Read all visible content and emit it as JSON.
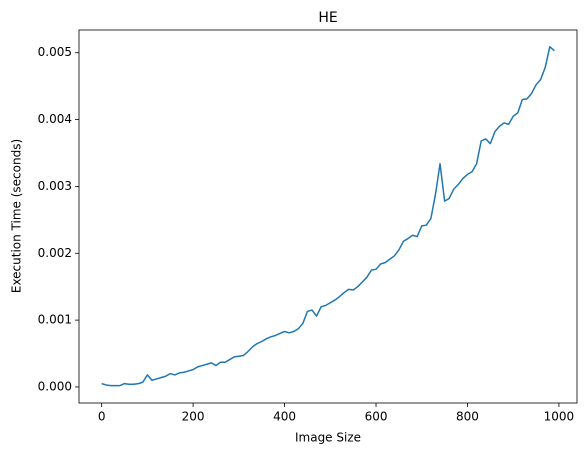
{
  "chart_data": {
    "type": "line",
    "title": "HE",
    "xlabel": "Image Size",
    "ylabel": "Execution Time (seconds)",
    "x": [
      0,
      10,
      20,
      30,
      40,
      50,
      60,
      70,
      80,
      90,
      100,
      110,
      120,
      130,
      140,
      150,
      160,
      170,
      180,
      190,
      200,
      210,
      220,
      230,
      240,
      250,
      260,
      270,
      280,
      290,
      300,
      310,
      320,
      330,
      340,
      350,
      360,
      370,
      380,
      390,
      400,
      410,
      420,
      430,
      440,
      450,
      460,
      470,
      480,
      490,
      500,
      510,
      520,
      530,
      540,
      550,
      560,
      570,
      580,
      590,
      600,
      610,
      620,
      630,
      640,
      650,
      660,
      670,
      680,
      690,
      700,
      710,
      720,
      730,
      740,
      750,
      760,
      770,
      780,
      790,
      800,
      810,
      820,
      830,
      840,
      850,
      860,
      870,
      880,
      890,
      900,
      910,
      920,
      930,
      940,
      950,
      960,
      970,
      980,
      990
    ],
    "series": [
      {
        "name": "HE",
        "color": "#1f77b4",
        "values": [
          5e-05,
          3e-05,
          2e-05,
          2e-05,
          2e-05,
          5e-05,
          4e-05,
          4e-05,
          5e-05,
          7e-05,
          0.00018,
          0.0001,
          0.00012,
          0.00014,
          0.00016,
          0.0002,
          0.00018,
          0.00021,
          0.00022,
          0.00024,
          0.00026,
          0.0003,
          0.00032,
          0.00034,
          0.00036,
          0.00032,
          0.00037,
          0.00037,
          0.00041,
          0.00045,
          0.00046,
          0.00047,
          0.00053,
          0.0006,
          0.00065,
          0.00068,
          0.00072,
          0.00075,
          0.00077,
          0.0008,
          0.00083,
          0.00081,
          0.00083,
          0.00087,
          0.00095,
          0.00113,
          0.00115,
          0.00106,
          0.0012,
          0.00122,
          0.00126,
          0.0013,
          0.00135,
          0.00141,
          0.00146,
          0.00145,
          0.0015,
          0.00157,
          0.00164,
          0.00175,
          0.00176,
          0.00184,
          0.00186,
          0.00191,
          0.00196,
          0.00205,
          0.00218,
          0.00222,
          0.00227,
          0.00225,
          0.00241,
          0.00242,
          0.00252,
          0.00288,
          0.00334,
          0.00278,
          0.00282,
          0.00296,
          0.00303,
          0.00312,
          0.00318,
          0.00322,
          0.00334,
          0.00368,
          0.00371,
          0.00364,
          0.00382,
          0.0039,
          0.00395,
          0.00393,
          0.00405,
          0.0041,
          0.0043,
          0.00431,
          0.00439,
          0.00452,
          0.0046,
          0.00478,
          0.00509,
          0.00503
        ]
      }
    ],
    "xlim": [
      -49.5,
      1039.5
    ],
    "ylim": [
      -0.00024,
      0.00534
    ],
    "xticks": [
      0,
      200,
      400,
      600,
      800,
      1000
    ],
    "yticks": [
      {
        "value": 0,
        "label": "0.000"
      },
      {
        "value": 0.001,
        "label": "0.001"
      },
      {
        "value": 0.002,
        "label": "0.002"
      },
      {
        "value": 0.003,
        "label": "0.003"
      },
      {
        "value": 0.004,
        "label": "0.004"
      },
      {
        "value": 0.005,
        "label": "0.005"
      }
    ],
    "grid": false
  }
}
